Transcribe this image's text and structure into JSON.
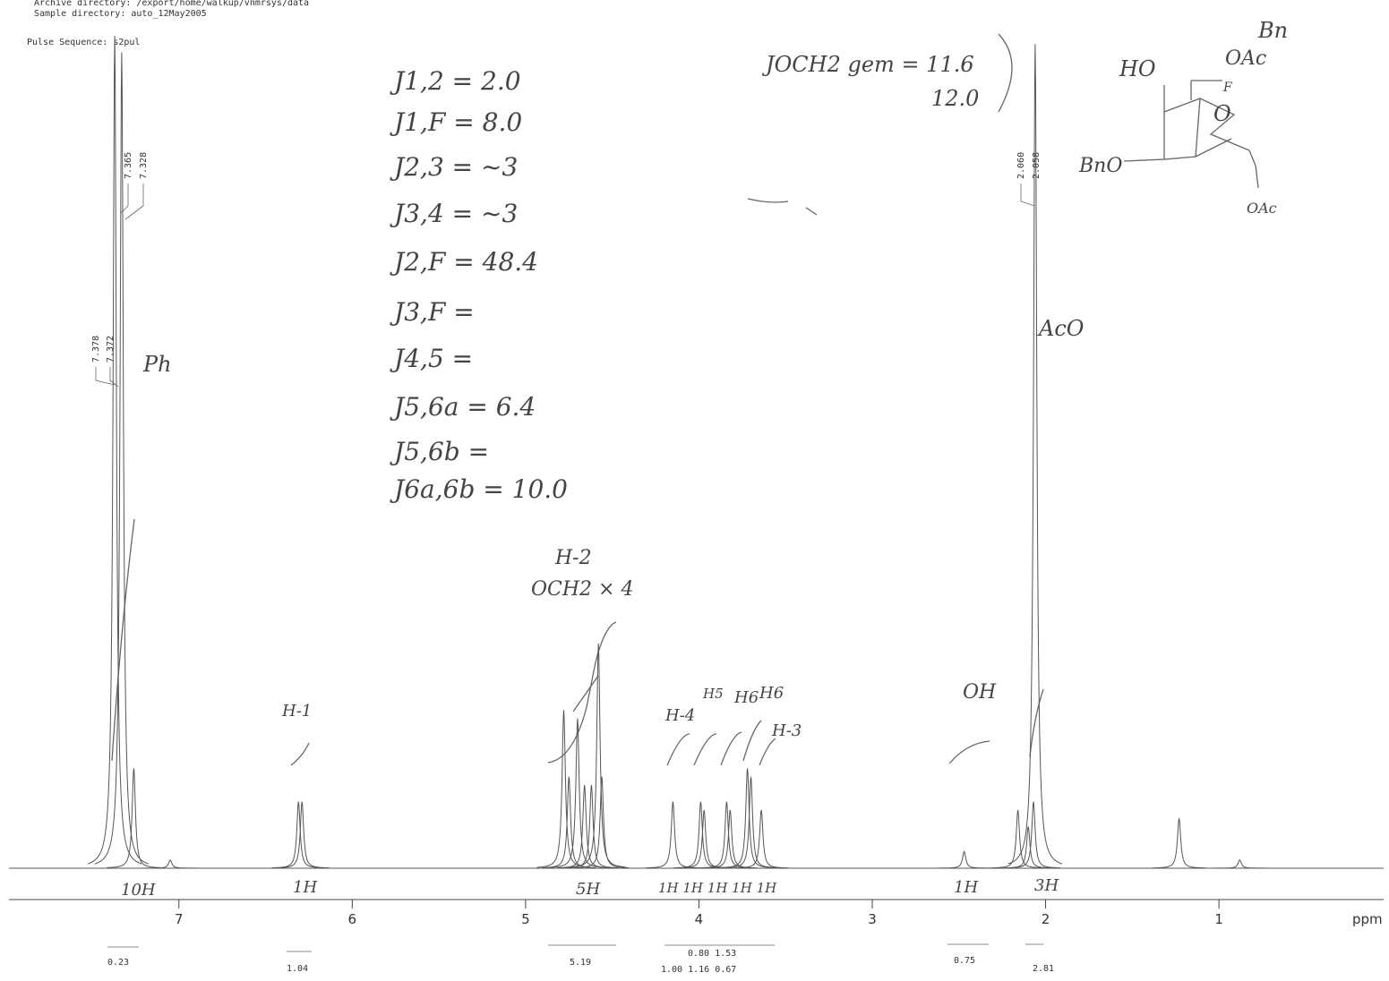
{
  "header": {
    "archive": "Archive directory: /export/home/walkup/vnmrsys/data",
    "sample": "Sample directory: auto_12May2005",
    "pulse": "Pulse Sequence: s2pul"
  },
  "chart_data": {
    "type": "spectrum",
    "x_label": "ppm",
    "color": "#555555",
    "xlim": [
      7.97,
      0.05
    ],
    "xticks": [
      7,
      6,
      5,
      4,
      3,
      2,
      1
    ],
    "ylim": [
      0,
      100
    ],
    "x": [
      7.37,
      7.33,
      7.26,
      7.05,
      6.31,
      6.29,
      4.78,
      4.75,
      4.7,
      4.66,
      4.62,
      4.58,
      4.56,
      4.15,
      3.99,
      3.97,
      3.84,
      3.82,
      3.72,
      3.7,
      3.64,
      2.47,
      2.16,
      2.1,
      2.07,
      2.06,
      1.23,
      0.88
    ],
    "values": [
      100,
      98,
      12,
      1,
      8,
      8,
      19,
      11,
      18,
      10,
      10,
      27,
      11,
      8,
      8,
      7,
      8,
      7,
      12,
      11,
      7,
      2,
      7,
      5,
      8,
      99,
      6,
      1
    ],
    "peak_labels": [
      "7.365",
      "7.328",
      "7.378",
      "7.372",
      "2.060",
      "2.058"
    ],
    "integrals": [
      "0.23",
      "1.04",
      "5.19",
      "0.80 1.53",
      "1.00 1.16 0.67",
      "0.75",
      "2.81"
    ]
  },
  "notes": {
    "couplings": [
      "J1,2 = 2.0",
      "J1,F = 8.0",
      "J2,3 = ~3",
      "J3,4 = ~3",
      "J2,F = 48.4",
      "J3,F =",
      "J4,5 =",
      "J5,6a = 6.4",
      "J5,6b =",
      "J6a,6b = 10.0"
    ],
    "gem": "JOCH2 gem = 11.6",
    "gem2": "12.0",
    "assignments": [
      "Ph",
      "AcO",
      "H-2",
      "OCH2 × 4",
      "H-1",
      "H-4",
      "H5",
      "H6",
      "H6",
      "H-3",
      "OH"
    ],
    "protons": [
      "10H",
      "1H",
      "5H",
      "1H  1H  1H 1H 1H",
      "1H",
      "3H"
    ],
    "structure": [
      "Bn",
      "HO",
      "OAc",
      "F",
      "O",
      "BnO",
      "OAc"
    ]
  }
}
